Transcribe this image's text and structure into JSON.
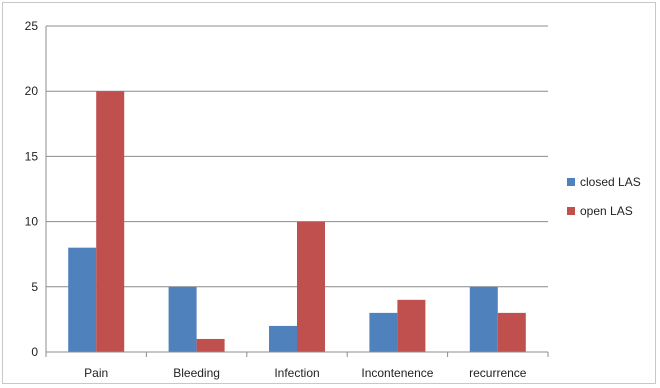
{
  "chart_data": {
    "type": "bar",
    "categories": [
      "Pain",
      "Bleeding",
      "Infection",
      "Incontenence",
      "recurrence"
    ],
    "series": [
      {
        "name": "closed LAS",
        "values": [
          8,
          5,
          2,
          3,
          5
        ],
        "color": "#4f81bd"
      },
      {
        "name": "open LAS",
        "values": [
          20,
          1,
          10,
          4,
          3
        ],
        "color": "#c0504d"
      }
    ],
    "ylim": [
      0,
      25
    ],
    "yticks": [
      0,
      5,
      10,
      15,
      20,
      25
    ],
    "grid": true,
    "legend": "right"
  }
}
